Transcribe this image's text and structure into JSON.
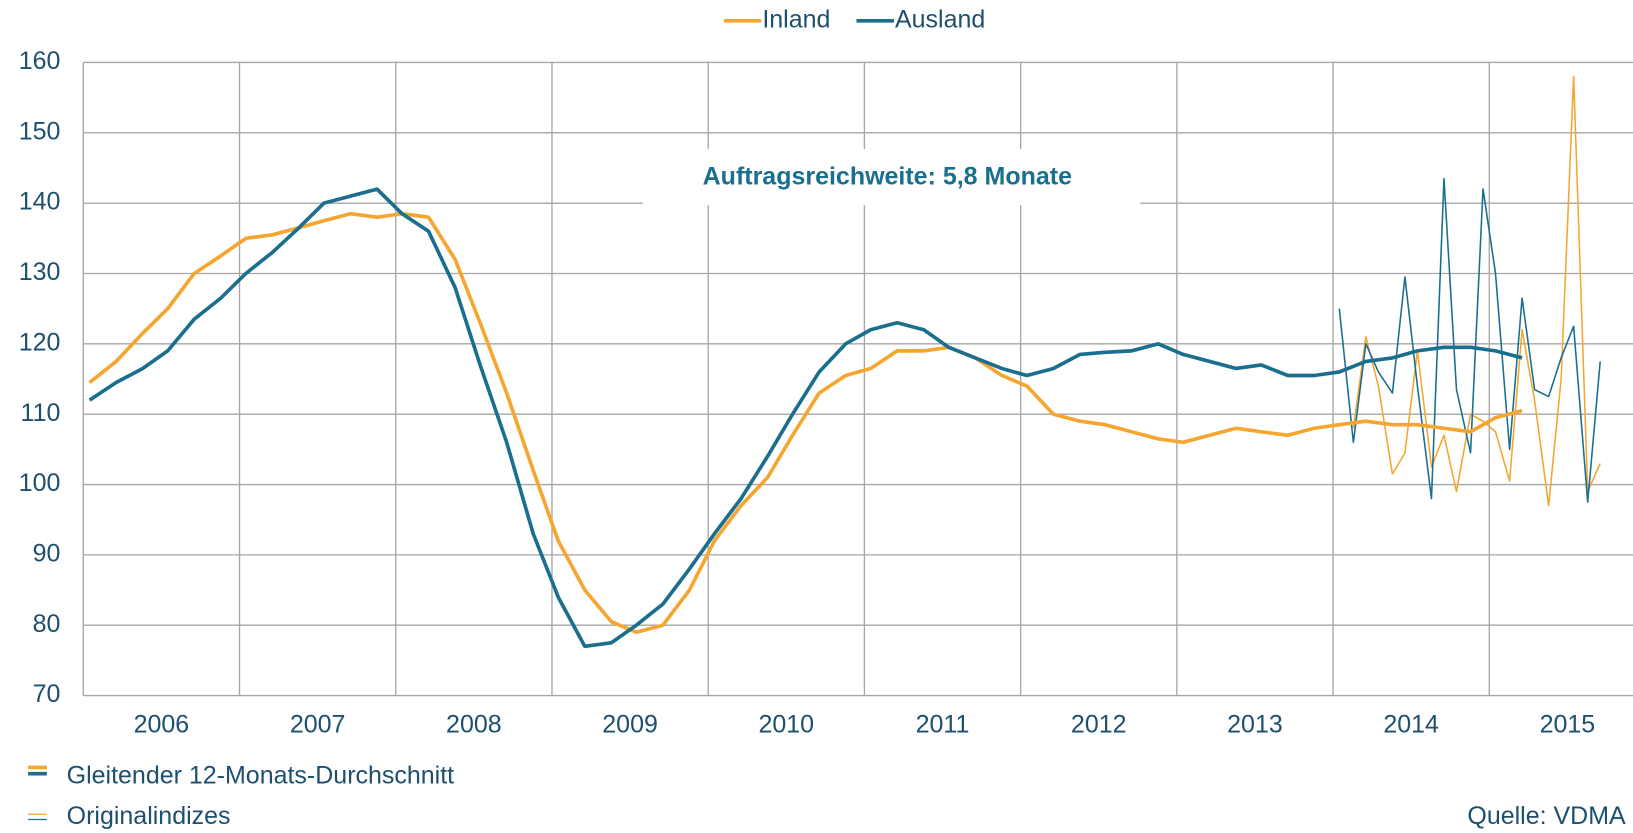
{
  "chart_data": {
    "type": "line",
    "annotation": "Auftragsreichweite: 5,8 Monate",
    "source": "Quelle: VDMA",
    "style_legend": [
      "Gleitender 12-Monats-Durchschnitt",
      "Originalindizes"
    ],
    "xlim": [
      2006,
      2015.92
    ],
    "xticks": [
      {
        "value": 2006.5,
        "label": "2006"
      },
      {
        "value": 2007.5,
        "label": "2007"
      },
      {
        "value": 2008.5,
        "label": "2008"
      },
      {
        "value": 2009.5,
        "label": "2009"
      },
      {
        "value": 2010.5,
        "label": "2010"
      },
      {
        "value": 2011.5,
        "label": "2011"
      },
      {
        "value": 2012.5,
        "label": "2012"
      },
      {
        "value": 2013.5,
        "label": "2013"
      },
      {
        "value": 2014.5,
        "label": "2014"
      },
      {
        "value": 2015.5,
        "label": "2015"
      }
    ],
    "xgrid": [
      2007,
      2008,
      2009,
      2010,
      2011,
      2012,
      2013,
      2014,
      2015
    ],
    "ylim": [
      70,
      160
    ],
    "yticks": [
      70,
      80,
      90,
      100,
      110,
      120,
      130,
      140,
      150,
      160
    ],
    "grid": true,
    "legend": "top",
    "series": [
      {
        "name": "Inland",
        "color": "#f5a630",
        "x": [
          2006.04,
          2006.21,
          2006.38,
          2006.54,
          2006.71,
          2006.88,
          2007.04,
          2007.21,
          2007.38,
          2007.54,
          2007.71,
          2007.88,
          2008.04,
          2008.21,
          2008.38,
          2008.54,
          2008.71,
          2008.88,
          2009.04,
          2009.21,
          2009.38,
          2009.54,
          2009.71,
          2009.88,
          2010.04,
          2010.21,
          2010.38,
          2010.54,
          2010.71,
          2010.88,
          2011.04,
          2011.21,
          2011.38,
          2011.54,
          2011.71,
          2011.88,
          2012.04,
          2012.21,
          2012.38,
          2012.54,
          2012.71,
          2012.88,
          2013.04,
          2013.21,
          2013.38,
          2013.54,
          2013.71,
          2013.88,
          2014.04,
          2014.21,
          2014.38,
          2014.54,
          2014.71,
          2014.88,
          2015.04,
          2015.21
        ],
        "values": [
          114.5,
          117.5,
          121.5,
          125,
          130,
          132.5,
          135,
          135.5,
          136.5,
          137.5,
          138.5,
          138,
          138.5,
          138,
          132,
          123,
          113,
          102,
          92,
          85,
          80.5,
          79,
          80,
          85,
          92,
          97,
          101,
          107,
          113,
          115.5,
          116.5,
          119,
          119,
          119.5,
          118,
          115.5,
          114,
          110,
          109,
          108.5,
          107.5,
          106.5,
          106,
          107,
          108,
          107.5,
          107,
          108,
          108.5,
          109,
          108.5,
          108.5,
          108,
          107.5,
          109.5,
          110.5
        ],
        "original": {
          "x": [
            2014.13,
            2014.21,
            2014.29,
            2014.38,
            2014.46,
            2014.54,
            2014.63,
            2014.71,
            2014.79,
            2014.88,
            2014.96,
            2015.04,
            2015.13,
            2015.21,
            2015.29,
            2015.38,
            2015.46,
            2015.54,
            2015.63,
            2015.71
          ],
          "values": [
            108,
            121,
            114,
            101.5,
            104.5,
            119,
            102.5,
            107,
            99,
            110,
            109,
            107.5,
            100.5,
            122,
            112,
            97,
            115,
            158,
            99,
            103
          ]
        }
      },
      {
        "name": "Ausland",
        "color": "#1a6e8e",
        "x": [
          2006.04,
          2006.21,
          2006.38,
          2006.54,
          2006.71,
          2006.88,
          2007.04,
          2007.21,
          2007.38,
          2007.54,
          2007.71,
          2007.88,
          2008.04,
          2008.21,
          2008.38,
          2008.54,
          2008.71,
          2008.88,
          2009.04,
          2009.21,
          2009.38,
          2009.54,
          2009.71,
          2009.88,
          2010.04,
          2010.21,
          2010.38,
          2010.54,
          2010.71,
          2010.88,
          2011.04,
          2011.21,
          2011.38,
          2011.54,
          2011.71,
          2011.88,
          2012.04,
          2012.21,
          2012.38,
          2012.54,
          2012.71,
          2012.88,
          2013.04,
          2013.21,
          2013.38,
          2013.54,
          2013.71,
          2013.88,
          2014.04,
          2014.21,
          2014.38,
          2014.54,
          2014.71,
          2014.88,
          2015.04,
          2015.21
        ],
        "values": [
          112,
          114.5,
          116.5,
          119,
          123.5,
          126.5,
          130,
          133,
          136.5,
          140,
          141,
          142,
          138.5,
          136,
          128,
          117,
          106,
          93,
          84,
          77,
          77.5,
          80,
          83,
          88,
          93,
          98,
          104,
          110,
          116,
          120,
          122,
          123,
          122,
          119.5,
          118,
          116.5,
          115.5,
          116.5,
          118.5,
          118.8,
          119,
          120,
          118.5,
          117.5,
          116.5,
          117,
          115.5,
          115.5,
          116,
          117.5,
          118,
          119,
          119.5,
          119.5,
          119,
          118
        ],
        "original": {
          "x": [
            2014.04,
            2014.13,
            2014.21,
            2014.29,
            2014.38,
            2014.46,
            2014.54,
            2014.63,
            2014.71,
            2014.79,
            2014.88,
            2014.96,
            2015.04,
            2015.13,
            2015.21,
            2015.29,
            2015.38,
            2015.46,
            2015.54,
            2015.63,
            2015.71
          ],
          "values": [
            125,
            106,
            120,
            116,
            113,
            129.5,
            114,
            98,
            143.5,
            113.5,
            104.5,
            142,
            130,
            105,
            126.5,
            113.5,
            112.5,
            118,
            122.5,
            97.5,
            117.5
          ]
        }
      }
    ]
  }
}
